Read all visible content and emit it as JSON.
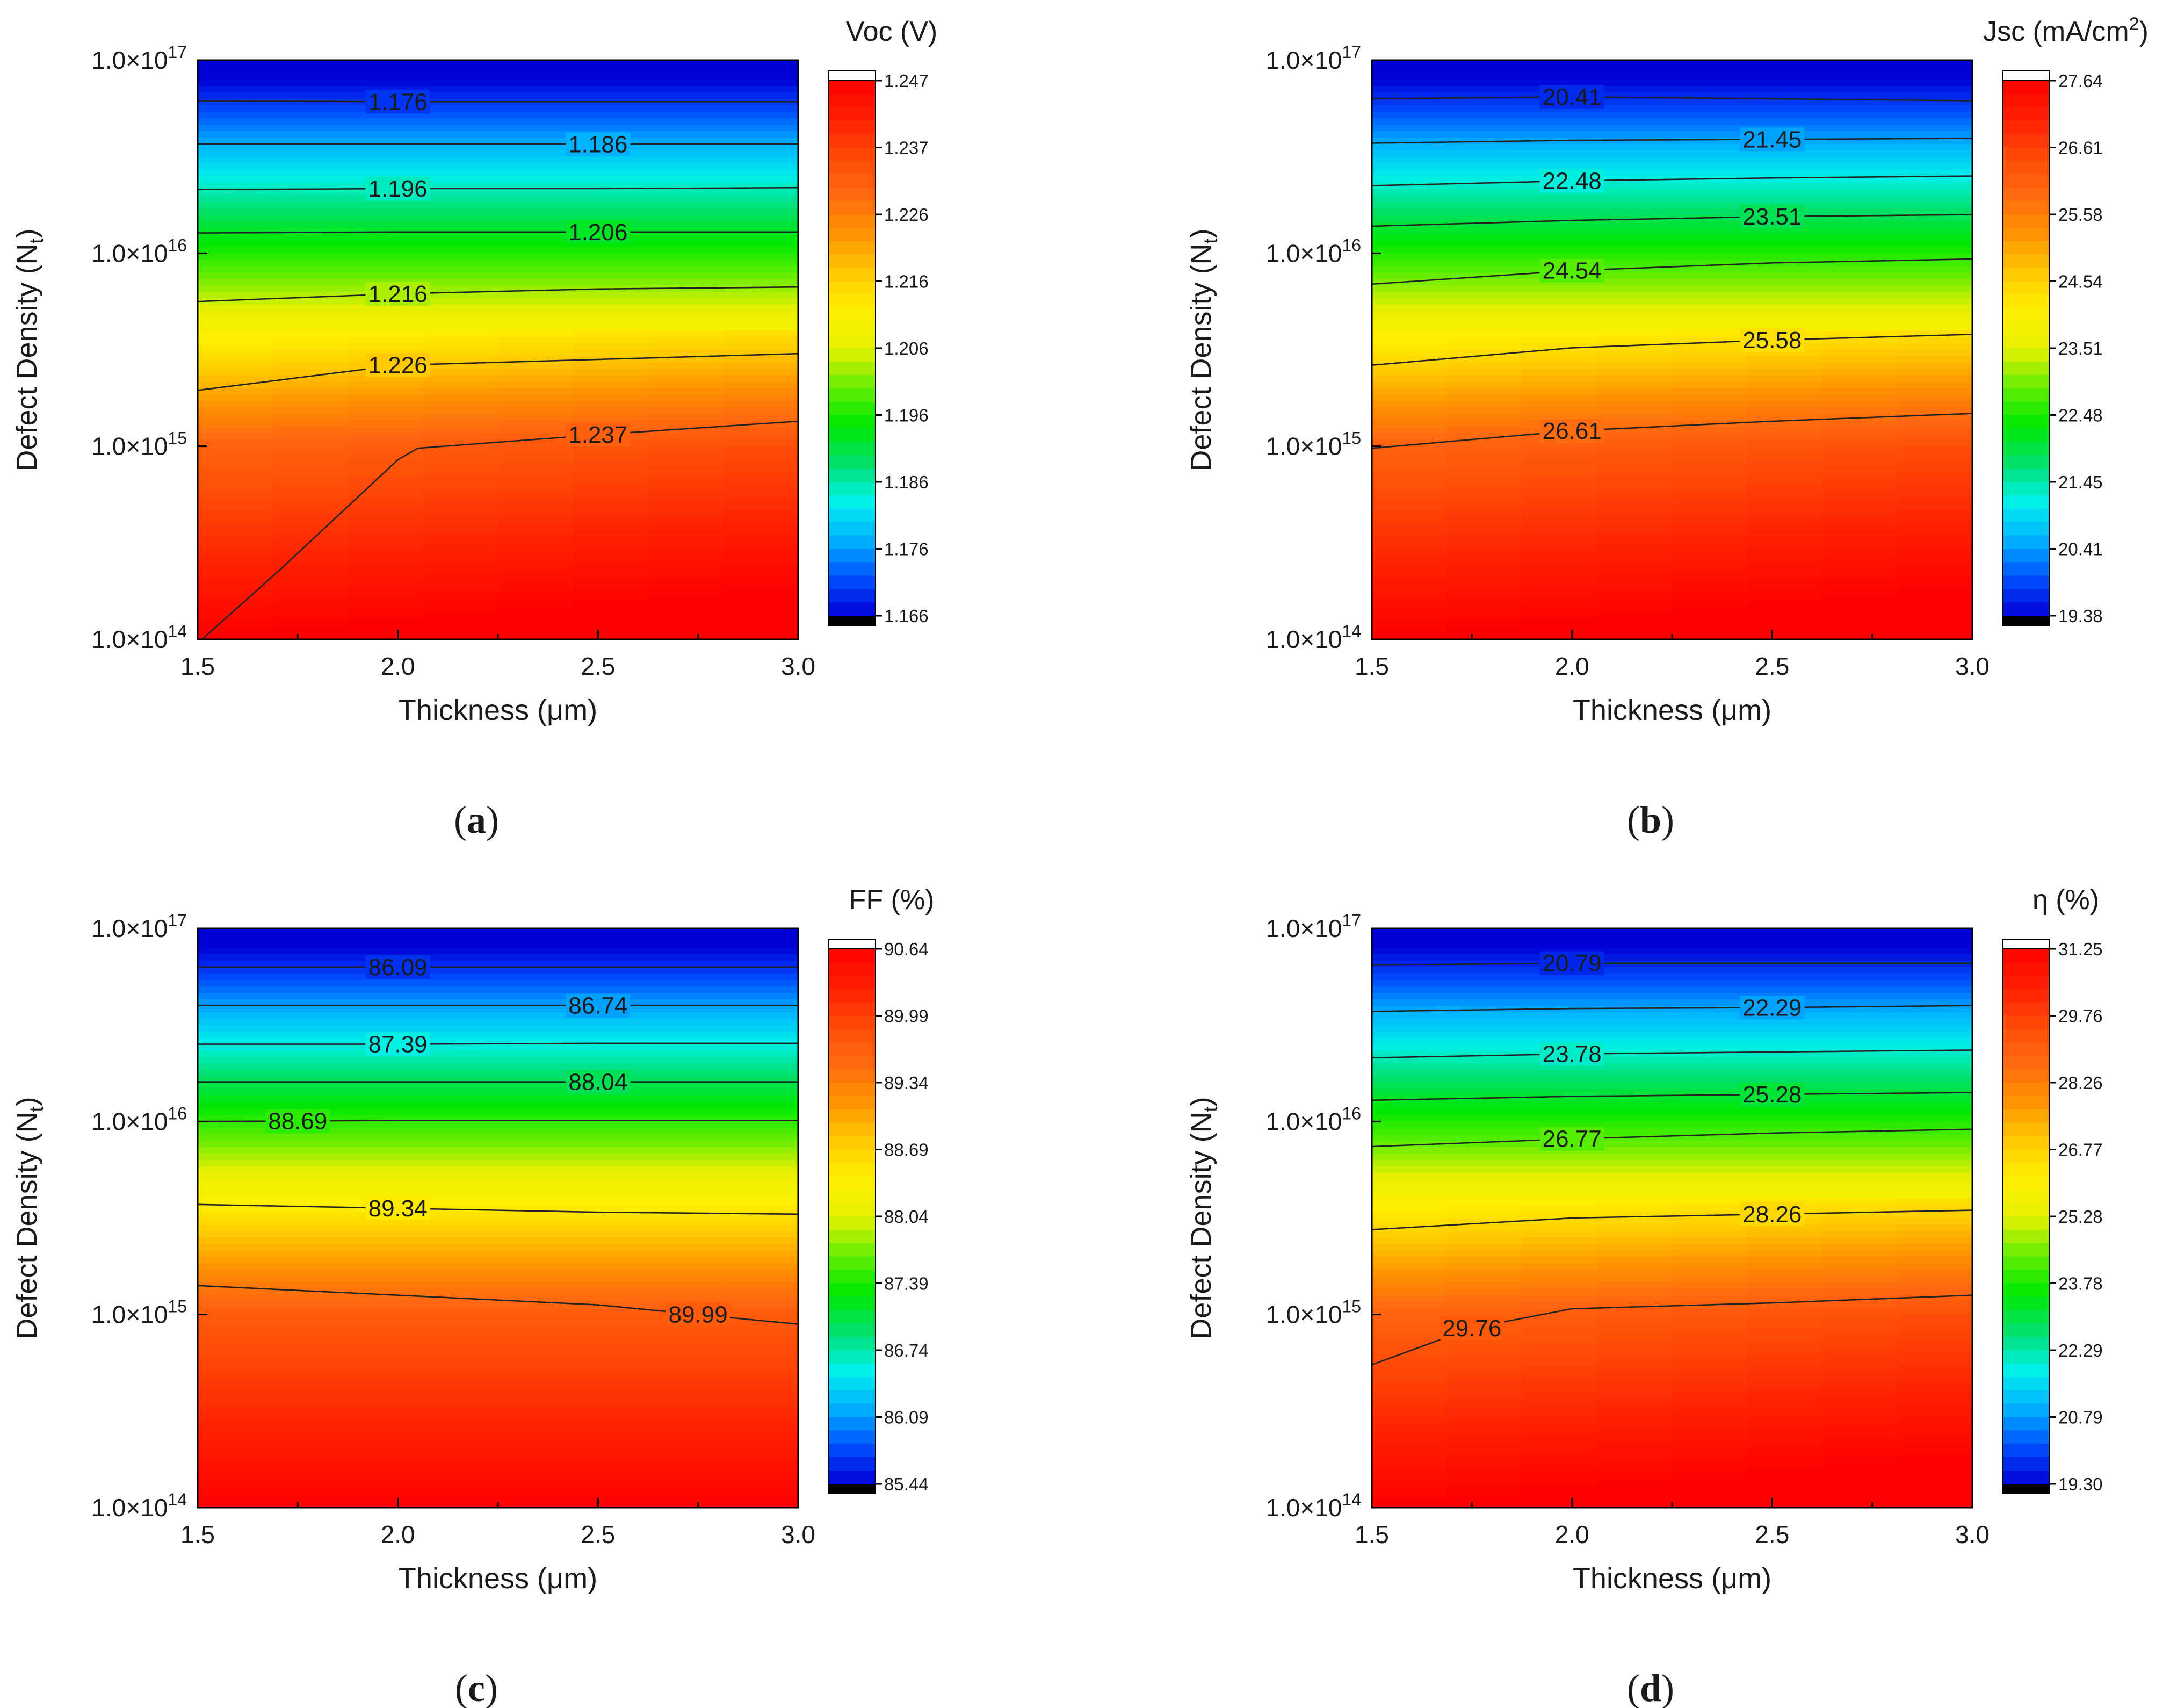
{
  "colors": {
    "stops": [
      "#0000d8",
      "#0050ff",
      "#00b4ff",
      "#00f0e8",
      "#00e06a",
      "#00e800",
      "#66ee00",
      "#e8f000",
      "#fff000",
      "#ffc800",
      "#ff9200",
      "#ff6a10",
      "#ff4a08",
      "#ff2000",
      "#ff0000"
    ],
    "contour_line": "#222222",
    "cbar_bottom": "#000000",
    "cbar_top": "#ffffff"
  },
  "chart_data": [
    {
      "id": "a",
      "type": "contour",
      "caption_letter": "a",
      "title": "Voc (V)",
      "title_sup": "",
      "title_suffix": "",
      "xlabel": "Thickness (μm)",
      "ylabel_main": "Defect Density (N",
      "ylabel_sub": "t",
      "ylabel_end": ")",
      "xlim": [
        1.5,
        3.0
      ],
      "x_ticks": [
        "1.5",
        "2.0",
        "2.5",
        "3.0"
      ],
      "y_log_range": [
        14,
        17
      ],
      "y_ticks": [
        {
          "mant": "1.0×10",
          "exp": "14"
        },
        {
          "mant": "1.0×10",
          "exp": "15"
        },
        {
          "mant": "1.0×10",
          "exp": "16"
        },
        {
          "mant": "1.0×10",
          "exp": "17"
        }
      ],
      "colorbar_ticks": [
        "1.166",
        "1.176",
        "1.186",
        "1.196",
        "1.206",
        "1.216",
        "1.226",
        "1.237",
        "1.247"
      ],
      "contours": [
        {
          "label": "1.176",
          "label_x": 2.0,
          "points": [
            [
              1.5,
              16.79
            ],
            [
              2.0,
              16.785
            ],
            [
              2.5,
              16.785
            ],
            [
              3.0,
              16.785
            ]
          ]
        },
        {
          "label": "1.186",
          "label_x": 2.5,
          "points": [
            [
              1.5,
              16.565
            ],
            [
              2.0,
              16.565
            ],
            [
              2.5,
              16.565
            ],
            [
              3.0,
              16.565
            ]
          ]
        },
        {
          "label": "1.196",
          "label_x": 2.0,
          "points": [
            [
              1.5,
              16.33
            ],
            [
              2.0,
              16.335
            ],
            [
              2.5,
              16.335
            ],
            [
              3.0,
              16.34
            ]
          ]
        },
        {
          "label": "1.206",
          "label_x": 2.5,
          "points": [
            [
              1.5,
              16.105
            ],
            [
              2.0,
              16.11
            ],
            [
              2.5,
              16.11
            ],
            [
              3.0,
              16.11
            ]
          ]
        },
        {
          "label": "1.216",
          "label_x": 2.0,
          "points": [
            [
              1.5,
              15.75
            ],
            [
              2.0,
              15.79
            ],
            [
              2.5,
              15.815
            ],
            [
              3.0,
              15.825
            ]
          ]
        },
        {
          "label": "1.226",
          "label_x": 2.0,
          "points": [
            [
              1.5,
              15.29
            ],
            [
              2.0,
              15.42
            ],
            [
              2.5,
              15.45
            ],
            [
              3.0,
              15.48
            ]
          ]
        },
        {
          "label": "1.237",
          "label_x": 2.5,
          "points": [
            [
              1.5,
              13.98
            ],
            [
              1.7,
              14.35
            ],
            [
              2.0,
              14.93
            ],
            [
              2.05,
              14.99
            ],
            [
              2.5,
              15.06
            ],
            [
              3.0,
              15.13
            ]
          ]
        }
      ]
    },
    {
      "id": "b",
      "type": "contour",
      "caption_letter": "b",
      "title": "Jsc (mA/cm",
      "title_sup": "2",
      "title_suffix": ")",
      "xlabel": "Thickness (μm)",
      "ylabel_main": "Defect Density (N",
      "ylabel_sub": "t",
      "ylabel_end": ")",
      "xlim": [
        1.5,
        3.0
      ],
      "x_ticks": [
        "1.5",
        "2.0",
        "2.5",
        "3.0"
      ],
      "y_log_range": [
        14,
        17
      ],
      "y_ticks": [
        {
          "mant": "1.0×10",
          "exp": "14"
        },
        {
          "mant": "1.0×10",
          "exp": "15"
        },
        {
          "mant": "1.0×10",
          "exp": "16"
        },
        {
          "mant": "1.0×10",
          "exp": "17"
        }
      ],
      "colorbar_ticks": [
        "19.38",
        "20.41",
        "21.45",
        "22.48",
        "23.51",
        "24.54",
        "25.58",
        "26.61",
        "27.64"
      ],
      "contours": [
        {
          "label": "20.41",
          "label_x": 2.0,
          "points": [
            [
              1.5,
              16.8
            ],
            [
              2.0,
              16.81
            ],
            [
              2.5,
              16.8
            ],
            [
              3.0,
              16.79
            ]
          ]
        },
        {
          "label": "21.45",
          "label_x": 2.5,
          "points": [
            [
              1.5,
              16.57
            ],
            [
              2.0,
              16.585
            ],
            [
              2.5,
              16.59
            ],
            [
              3.0,
              16.595
            ]
          ]
        },
        {
          "label": "22.48",
          "label_x": 2.0,
          "points": [
            [
              1.5,
              16.35
            ],
            [
              2.0,
              16.375
            ],
            [
              2.5,
              16.39
            ],
            [
              3.0,
              16.4
            ]
          ]
        },
        {
          "label": "23.51",
          "label_x": 2.5,
          "points": [
            [
              1.5,
              16.14
            ],
            [
              2.0,
              16.17
            ],
            [
              2.5,
              16.19
            ],
            [
              3.0,
              16.2
            ]
          ]
        },
        {
          "label": "24.54",
          "label_x": 2.0,
          "points": [
            [
              1.5,
              15.84
            ],
            [
              2.0,
              15.91
            ],
            [
              2.5,
              15.95
            ],
            [
              3.0,
              15.97
            ]
          ]
        },
        {
          "label": "25.58",
          "label_x": 2.5,
          "points": [
            [
              1.5,
              15.42
            ],
            [
              2.0,
              15.51
            ],
            [
              2.5,
              15.55
            ],
            [
              3.0,
              15.58
            ]
          ]
        },
        {
          "label": "26.61",
          "label_x": 2.0,
          "points": [
            [
              1.5,
              14.99
            ],
            [
              2.0,
              15.08
            ],
            [
              2.5,
              15.13
            ],
            [
              3.0,
              15.17
            ]
          ]
        }
      ]
    },
    {
      "id": "c",
      "type": "contour",
      "caption_letter": "c",
      "title": "FF (%)",
      "title_sup": "",
      "title_suffix": "",
      "xlabel": "Thickness (μm)",
      "ylabel_main": "Defect Density (N",
      "ylabel_sub": "t",
      "ylabel_end": ")",
      "xlim": [
        1.5,
        3.0
      ],
      "x_ticks": [
        "1.5",
        "2.0",
        "2.5",
        "3.0"
      ],
      "y_log_range": [
        14,
        17
      ],
      "y_ticks": [
        {
          "mant": "1.0×10",
          "exp": "14"
        },
        {
          "mant": "1.0×10",
          "exp": "15"
        },
        {
          "mant": "1.0×10",
          "exp": "16"
        },
        {
          "mant": "1.0×10",
          "exp": "17"
        }
      ],
      "colorbar_ticks": [
        "85.44",
        "86.09",
        "86.74",
        "87.39",
        "88.04",
        "88.69",
        "89.34",
        "89.99",
        "90.64"
      ],
      "contours": [
        {
          "label": "86.09",
          "label_x": 2.0,
          "points": [
            [
              1.5,
              16.8
            ],
            [
              2.0,
              16.8
            ],
            [
              2.5,
              16.8
            ],
            [
              3.0,
              16.8
            ]
          ]
        },
        {
          "label": "86.74",
          "label_x": 2.5,
          "points": [
            [
              1.5,
              16.6
            ],
            [
              2.0,
              16.6
            ],
            [
              2.5,
              16.6
            ],
            [
              3.0,
              16.6
            ]
          ]
        },
        {
          "label": "87.39",
          "label_x": 2.0,
          "points": [
            [
              1.5,
              16.4
            ],
            [
              2.0,
              16.4
            ],
            [
              2.5,
              16.405
            ],
            [
              3.0,
              16.405
            ]
          ]
        },
        {
          "label": "88.04",
          "label_x": 2.5,
          "points": [
            [
              1.5,
              16.205
            ],
            [
              2.0,
              16.205
            ],
            [
              2.5,
              16.205
            ],
            [
              3.0,
              16.205
            ]
          ]
        },
        {
          "label": "88.69",
          "label_x": 1.75,
          "points": [
            [
              1.5,
              16.0
            ],
            [
              2.0,
              16.005
            ],
            [
              2.5,
              16.005
            ],
            [
              3.0,
              16.005
            ]
          ]
        },
        {
          "label": "89.34",
          "label_x": 2.0,
          "points": [
            [
              1.5,
              15.57
            ],
            [
              2.0,
              15.55
            ],
            [
              2.5,
              15.53
            ],
            [
              3.0,
              15.52
            ]
          ]
        },
        {
          "label": "89.99",
          "label_x": 2.75,
          "points": [
            [
              1.5,
              15.15
            ],
            [
              2.0,
              15.1
            ],
            [
              2.5,
              15.05
            ],
            [
              3.0,
              14.95
            ]
          ]
        }
      ]
    },
    {
      "id": "d",
      "type": "contour",
      "caption_letter": "d",
      "title": "η (%)",
      "title_sup": "",
      "title_suffix": "",
      "xlabel": "Thickness (μm)",
      "ylabel_main": "Defect Density (N",
      "ylabel_sub": "t",
      "ylabel_end": ")",
      "xlim": [
        1.5,
        3.0
      ],
      "x_ticks": [
        "1.5",
        "2.0",
        "2.5",
        "3.0"
      ],
      "y_log_range": [
        14,
        17
      ],
      "y_ticks": [
        {
          "mant": "1.0×10",
          "exp": "14"
        },
        {
          "mant": "1.0×10",
          "exp": "15"
        },
        {
          "mant": "1.0×10",
          "exp": "16"
        },
        {
          "mant": "1.0×10",
          "exp": "17"
        }
      ],
      "colorbar_ticks": [
        "19.30",
        "20.79",
        "22.29",
        "23.78",
        "25.28",
        "26.77",
        "28.26",
        "29.76",
        "31.25"
      ],
      "contours": [
        {
          "label": "20.79",
          "label_x": 2.0,
          "points": [
            [
              1.5,
              16.81
            ],
            [
              2.0,
              16.82
            ],
            [
              2.5,
              16.82
            ],
            [
              3.0,
              16.82
            ]
          ]
        },
        {
          "label": "22.29",
          "label_x": 2.5,
          "points": [
            [
              1.5,
              16.57
            ],
            [
              2.0,
              16.585
            ],
            [
              2.5,
              16.59
            ],
            [
              3.0,
              16.6
            ]
          ]
        },
        {
          "label": "23.78",
          "label_x": 2.0,
          "points": [
            [
              1.5,
              16.33
            ],
            [
              2.0,
              16.35
            ],
            [
              2.5,
              16.36
            ],
            [
              3.0,
              16.37
            ]
          ]
        },
        {
          "label": "25.28",
          "label_x": 2.5,
          "points": [
            [
              1.5,
              16.11
            ],
            [
              2.0,
              16.13
            ],
            [
              2.5,
              16.14
            ],
            [
              3.0,
              16.15
            ]
          ]
        },
        {
          "label": "26.77",
          "label_x": 2.0,
          "points": [
            [
              1.5,
              15.87
            ],
            [
              2.0,
              15.91
            ],
            [
              2.5,
              15.94
            ],
            [
              3.0,
              15.96
            ]
          ]
        },
        {
          "label": "28.26",
          "label_x": 2.5,
          "points": [
            [
              1.5,
              15.44
            ],
            [
              2.0,
              15.5
            ],
            [
              2.5,
              15.52
            ],
            [
              3.0,
              15.54
            ]
          ]
        },
        {
          "label": "29.76",
          "label_x": 1.75,
          "points": [
            [
              1.5,
              14.74
            ],
            [
              1.75,
              14.93
            ],
            [
              2.0,
              15.03
            ],
            [
              2.5,
              15.06
            ],
            [
              3.0,
              15.1
            ]
          ]
        }
      ]
    }
  ]
}
